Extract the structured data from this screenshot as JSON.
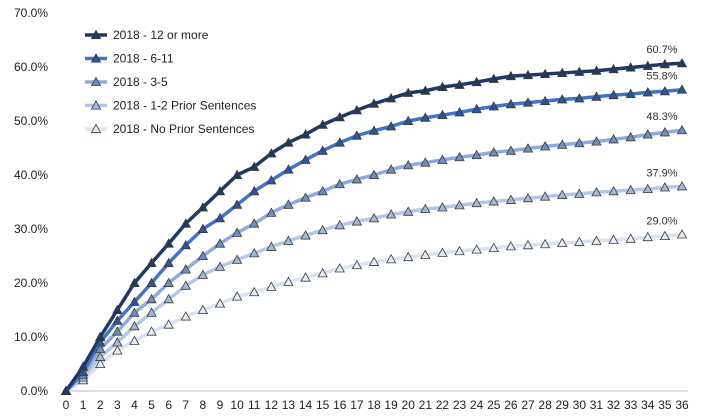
{
  "chart_data": {
    "type": "line",
    "x": [
      0,
      1,
      2,
      3,
      4,
      5,
      6,
      7,
      8,
      9,
      10,
      11,
      12,
      13,
      14,
      15,
      16,
      17,
      18,
      19,
      20,
      21,
      22,
      23,
      24,
      25,
      26,
      27,
      28,
      29,
      30,
      31,
      32,
      33,
      34,
      35,
      36
    ],
    "ylim": [
      0,
      70
    ],
    "y_ticks": [
      "0.0%",
      "10.0%",
      "20.0%",
      "30.0%",
      "40.0%",
      "50.0%",
      "60.0%",
      "70.0%"
    ],
    "grid": false,
    "legend_position": "top-left",
    "series": [
      {
        "name": "2018 - 12 or more",
        "color": "#1F3864",
        "marker_fill": "#1F3864",
        "end_label": "60.7%",
        "values": [
          0,
          4.5,
          10,
          15,
          20,
          23.7,
          27.3,
          31,
          34,
          37,
          40,
          41.5,
          44,
          46,
          47.5,
          49.3,
          50.7,
          52,
          53.2,
          54.2,
          55.2,
          55.6,
          56.3,
          56.7,
          57.2,
          57.8,
          58.3,
          58.5,
          58.7,
          58.9,
          59.1,
          59.3,
          59.6,
          59.9,
          60.2,
          60.5,
          60.7
        ]
      },
      {
        "name": "2018 - 6-11",
        "color": "#4472C4",
        "marker_fill": "#2E5597",
        "end_label": "55.8%",
        "values": [
          0,
          3.5,
          9,
          13,
          16.5,
          20,
          23.7,
          27,
          30,
          32,
          34.5,
          37,
          39,
          41,
          42.8,
          44.5,
          46,
          47.3,
          48.2,
          49,
          50,
          50.6,
          51.1,
          51.6,
          52.2,
          52.7,
          53.1,
          53.4,
          53.7,
          54,
          54.2,
          54.5,
          54.8,
          55,
          55.3,
          55.5,
          55.8
        ]
      },
      {
        "name": "2018 - 3-5",
        "color": "#8EA9DB",
        "marker_fill": "#6F8FBF",
        "end_label": "48.3%",
        "values": [
          0,
          3,
          7.8,
          11,
          14.5,
          17,
          20,
          22.5,
          25,
          27.3,
          29.3,
          31,
          33,
          34.5,
          35.8,
          37,
          38.3,
          39.2,
          40,
          41,
          41.8,
          42.3,
          42.8,
          43.3,
          43.7,
          44.2,
          44.5,
          44.9,
          45.3,
          45.6,
          45.9,
          46.2,
          46.6,
          47,
          47.5,
          47.9,
          48.3
        ]
      },
      {
        "name": "2018 - 1-2 Prior Sentences",
        "color": "#B4C7E7",
        "marker_fill": "#A4B9DA",
        "end_label": "37.9%",
        "values": [
          0,
          2.5,
          6.3,
          9,
          12,
          14.5,
          17,
          19.5,
          21.5,
          23,
          24.3,
          25.5,
          26.7,
          27.8,
          28.8,
          29.8,
          30.7,
          31.4,
          32,
          32.7,
          33.2,
          33.7,
          34,
          34.4,
          34.8,
          35.1,
          35.4,
          35.7,
          36,
          36.3,
          36.5,
          36.8,
          37,
          37.2,
          37.4,
          37.7,
          37.9
        ]
      },
      {
        "name": "2018 - No Prior Sentences",
        "color": "#D9E2F3",
        "marker_fill": "#E7ECF5",
        "end_label": "29.0%",
        "values": [
          0,
          2,
          5,
          7.5,
          9.3,
          11,
          12.3,
          13.8,
          15,
          16.2,
          17.5,
          18.3,
          19.3,
          20.2,
          21,
          21.8,
          22.7,
          23.3,
          23.9,
          24.4,
          24.8,
          25.2,
          25.6,
          25.9,
          26.2,
          26.5,
          26.8,
          27,
          27.2,
          27.4,
          27.6,
          27.8,
          28,
          28.2,
          28.5,
          28.7,
          29
        ]
      }
    ]
  }
}
